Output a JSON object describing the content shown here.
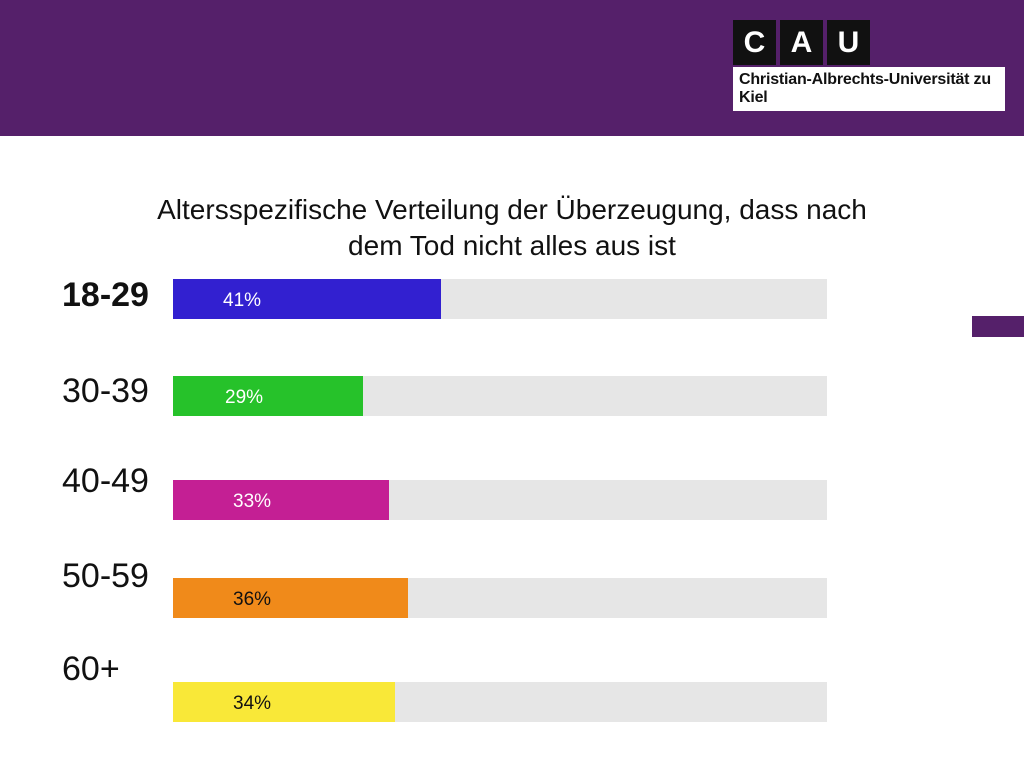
{
  "header": {
    "band_color": "#55206a",
    "logo_letters": [
      "C",
      "A",
      "U"
    ],
    "logo_text": "Christian-Albrechts-Universität zu Kiel"
  },
  "side_accent_color": "#55206a",
  "chart_data": {
    "type": "bar",
    "orientation": "horizontal",
    "title": "Altersspezifische Verteilung der Überzeugung, dass  nach dem Tod nicht alles aus ist",
    "title_lines": [
      "Altersspezifische Verteilung der Überzeugung, dass  nach",
      "dem Tod nicht alles aus ist"
    ],
    "categories": [
      "18-29",
      "30-39",
      "40-49",
      "50-59",
      "60+"
    ],
    "values": [
      41,
      29,
      33,
      36,
      34
    ],
    "value_labels": [
      "41%",
      "29%",
      "33%",
      "36%",
      "34%"
    ],
    "unit": "%",
    "xlim": [
      0,
      100
    ],
    "colors": [
      "#3220d0",
      "#26c22a",
      "#c41f94",
      "#f08a1a",
      "#f9e838"
    ],
    "value_label_colors": [
      "#ffffff",
      "#ffffff",
      "#ffffff",
      "#111111",
      "#111111"
    ],
    "track_color": "#e6e6e6",
    "bold_categories": [
      "18-29"
    ],
    "grid": false,
    "legend": "none"
  }
}
